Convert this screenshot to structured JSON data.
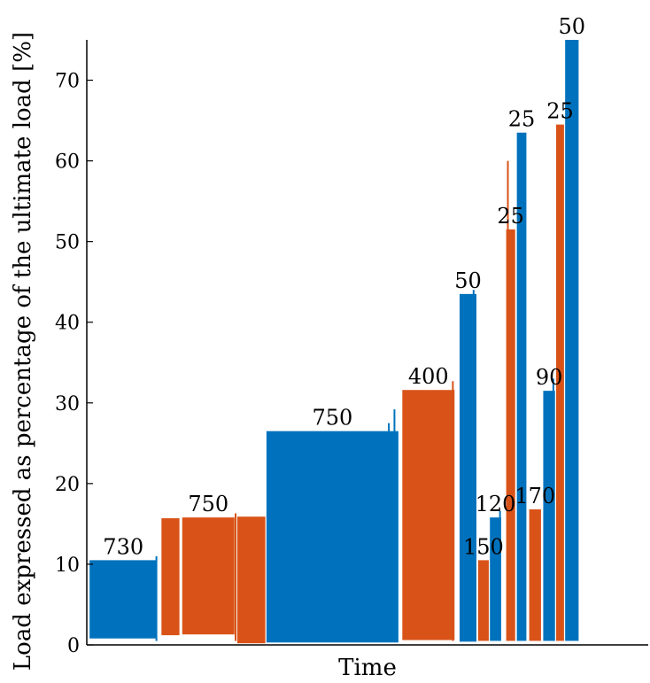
{
  "chart_data": {
    "type": "bar",
    "xlabel": "Time",
    "ylabel": "Load expressed as percentage of the ultimate load [%]",
    "ylim": [
      0,
      75
    ],
    "yticks": [
      0,
      10,
      20,
      30,
      40,
      50,
      60,
      70
    ],
    "grid": false,
    "colors": {
      "blue": "#0072BD",
      "orange": "#D95319"
    },
    "blocks": [
      {
        "start": 0.5,
        "end": 12.5,
        "min": 0.8,
        "max": 10.5,
        "color": "blue",
        "label": "730"
      },
      {
        "start": 13.3,
        "end": 16.5,
        "min": 1.2,
        "max": 15.7,
        "color": "orange",
        "label": ""
      },
      {
        "start": 17.0,
        "end": 26.3,
        "min": 1.3,
        "max": 15.8,
        "color": "orange",
        "label": "750"
      },
      {
        "start": 26.8,
        "end": 31.8,
        "min": 0.2,
        "max": 15.9,
        "color": "orange",
        "label": ""
      },
      {
        "start": 32.0,
        "end": 55.5,
        "min": 0.3,
        "max": 26.5,
        "color": "blue",
        "label": "750"
      },
      {
        "start": 56.2,
        "end": 65.5,
        "min": 0.6,
        "max": 31.6,
        "color": "orange",
        "label": "400"
      },
      {
        "start": 66.4,
        "end": 69.4,
        "min": 0.4,
        "max": 43.5,
        "color": "blue",
        "label": "50"
      },
      {
        "start": 69.7,
        "end": 71.6,
        "min": 0.5,
        "max": 10.5,
        "color": "orange",
        "label": "150"
      },
      {
        "start": 71.8,
        "end": 73.8,
        "min": 0.5,
        "max": 15.8,
        "color": "blue",
        "label": "120"
      },
      {
        "start": 74.7,
        "end": 76.3,
        "min": 0.5,
        "max": 51.5,
        "color": "orange",
        "label": "25"
      },
      {
        "start": 76.6,
        "end": 78.3,
        "min": 0.5,
        "max": 63.5,
        "color": "blue",
        "label": "25"
      },
      {
        "start": 78.8,
        "end": 80.9,
        "min": 0.5,
        "max": 16.8,
        "color": "orange",
        "label": "170"
      },
      {
        "start": 81.3,
        "end": 83.4,
        "min": 0.5,
        "max": 31.5,
        "color": "blue",
        "label": "90"
      },
      {
        "start": 83.6,
        "end": 85.0,
        "min": 0.5,
        "max": 64.5,
        "color": "orange",
        "label": "25"
      },
      {
        "start": 85.2,
        "end": 87.6,
        "min": 0.5,
        "max": 75.0,
        "color": "blue",
        "label": "50"
      }
    ],
    "spikes": [
      {
        "x": 12.4,
        "value": 11.0,
        "color": "blue"
      },
      {
        "x": 26.5,
        "value": 16.3,
        "color": "orange"
      },
      {
        "x": 53.8,
        "value": 27.5,
        "color": "blue"
      },
      {
        "x": 54.8,
        "value": 29.2,
        "color": "blue"
      },
      {
        "x": 65.2,
        "value": 32.7,
        "color": "orange"
      },
      {
        "x": 75.0,
        "value": 60.0,
        "color": "orange"
      },
      {
        "x": 73.6,
        "value": 16.6,
        "color": "blue"
      },
      {
        "x": 68.9,
        "value": 44.0,
        "color": "blue"
      },
      {
        "x": 83.1,
        "value": 33.0,
        "color": "blue"
      }
    ]
  }
}
